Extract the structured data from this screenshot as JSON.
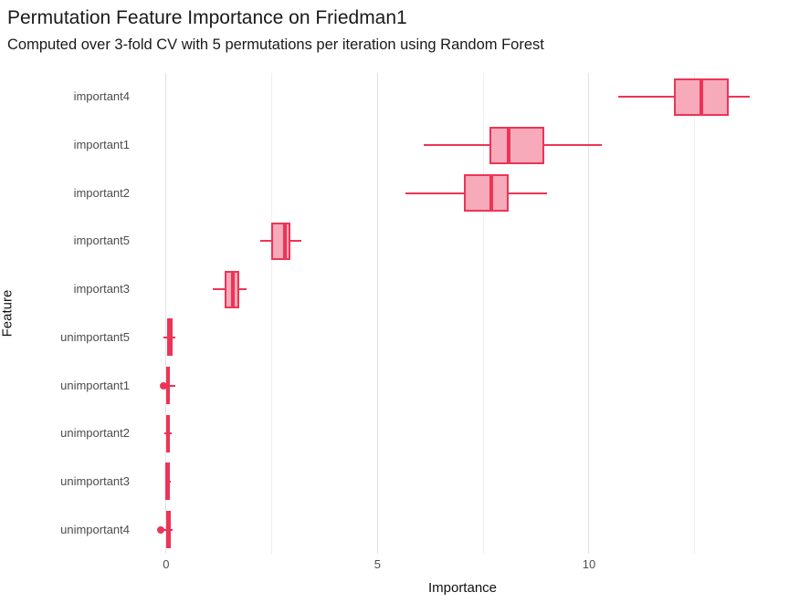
{
  "chart_data": {
    "type": "boxplot",
    "orientation": "horizontal",
    "title": "Permutation Feature Importance on Friedman1",
    "subtitle": "Computed over 3-fold CV with 5 permutations per iteration using Random Forest",
    "xlabel": "Importance",
    "ylabel": "Feature",
    "x_domain": [
      -0.58,
      14.6
    ],
    "x_major_ticks": [
      0,
      5,
      10
    ],
    "x_major_tick_labels": [
      "0",
      "5",
      "10"
    ],
    "x_minor_ticks": [
      2.5,
      7.5,
      12.5
    ],
    "grid": "vertical-only",
    "legend": "none",
    "rows": [
      {
        "feature": "important4",
        "whisker_lo": 10.7,
        "q1": 12.0,
        "median": 12.65,
        "q3": 13.3,
        "whisker_hi": 13.8,
        "outliers": []
      },
      {
        "feature": "important1",
        "whisker_lo": 6.1,
        "q1": 7.65,
        "median": 8.1,
        "q3": 8.95,
        "whisker_hi": 10.3,
        "outliers": []
      },
      {
        "feature": "important2",
        "whisker_lo": 5.65,
        "q1": 7.05,
        "median": 7.7,
        "q3": 8.1,
        "whisker_hi": 9.0,
        "outliers": []
      },
      {
        "feature": "important5",
        "whisker_lo": 2.22,
        "q1": 2.48,
        "median": 2.8,
        "q3": 2.94,
        "whisker_hi": 3.2,
        "outliers": []
      },
      {
        "feature": "important3",
        "whisker_lo": 1.1,
        "q1": 1.38,
        "median": 1.58,
        "q3": 1.73,
        "whisker_hi": 1.9,
        "outliers": []
      },
      {
        "feature": "unimportant5",
        "whisker_lo": -0.06,
        "q1": 0.02,
        "median": 0.08,
        "q3": 0.15,
        "whisker_hi": 0.21,
        "outliers": []
      },
      {
        "feature": "unimportant1",
        "whisker_lo": -0.02,
        "q1": 0.0,
        "median": 0.05,
        "q3": 0.1,
        "whisker_hi": 0.21,
        "outliers": [
          -0.07
        ]
      },
      {
        "feature": "unimportant2",
        "whisker_lo": -0.04,
        "q1": 0.01,
        "median": 0.05,
        "q3": 0.1,
        "whisker_hi": 0.13,
        "outliers": []
      },
      {
        "feature": "unimportant3",
        "whisker_lo": -0.02,
        "q1": 0.01,
        "median": 0.03,
        "q3": 0.1,
        "whisker_hi": 0.12,
        "outliers": []
      },
      {
        "feature": "unimportant4",
        "whisker_lo": -0.06,
        "q1": 0.0,
        "median": 0.05,
        "q3": 0.12,
        "whisker_hi": 0.15,
        "outliers": [
          -0.12
        ]
      }
    ],
    "colors": {
      "box_fill": "#F7AAB9",
      "box_stroke": "#ED3457",
      "grid_major": "#E2E2E2",
      "grid_minor": "#F0F0F0",
      "axis_text": "#4D4D4D",
      "title_text": "#1A1A1A",
      "background": "#FFFFFF"
    }
  }
}
